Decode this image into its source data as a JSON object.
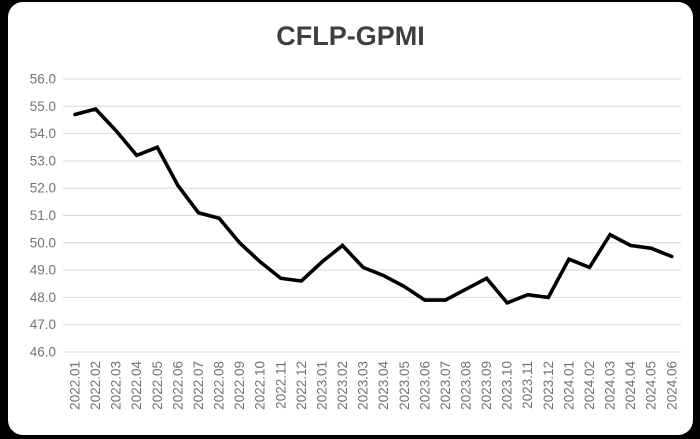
{
  "window": {
    "background": "#000000",
    "card_background": "#ffffff"
  },
  "chart_data": {
    "type": "line",
    "title": "CFLP-GPMI",
    "categories": [
      "2022.01",
      "2022.02",
      "2022.03",
      "2022.04",
      "2022.05",
      "2022.06",
      "2022.07",
      "2022.08",
      "2022.09",
      "2022.10",
      "2022.11",
      "2022.12",
      "2023.01",
      "2023.02",
      "2023.03",
      "2023.04",
      "2023.05",
      "2023.06",
      "2023.07",
      "2023.08",
      "2023.09",
      "2023.10",
      "2023.11",
      "2023.12",
      "2024.01",
      "2024.02",
      "2024.03",
      "2024.04",
      "2024.05",
      "2024.06"
    ],
    "series": [
      {
        "name": "CFLP-GPMI",
        "values": [
          54.7,
          54.9,
          54.1,
          53.2,
          53.5,
          52.1,
          51.1,
          50.9,
          50.0,
          49.3,
          48.7,
          48.6,
          49.3,
          49.9,
          49.1,
          48.8,
          48.4,
          47.9,
          47.9,
          48.3,
          48.7,
          47.8,
          48.1,
          48.0,
          49.4,
          49.1,
          50.3,
          49.9,
          49.8,
          49.5
        ]
      }
    ],
    "ylim": [
      46.0,
      56.0
    ],
    "y_tick_labels": [
      "56.0",
      "55.0",
      "54.0",
      "53.0",
      "52.0",
      "51.0",
      "50.0",
      "49.0",
      "48.0",
      "47.0",
      "46.0"
    ],
    "y_tick_values": [
      56.0,
      55.0,
      54.0,
      53.0,
      52.0,
      51.0,
      50.0,
      49.0,
      48.0,
      47.0,
      46.0
    ],
    "grid": true,
    "legend_position": "none",
    "x_label_rotation": -90,
    "colors": {
      "line": "#000000",
      "gridline": "#d9d9d9",
      "tick_label": "#737373",
      "title": "#3f3f3f"
    }
  }
}
